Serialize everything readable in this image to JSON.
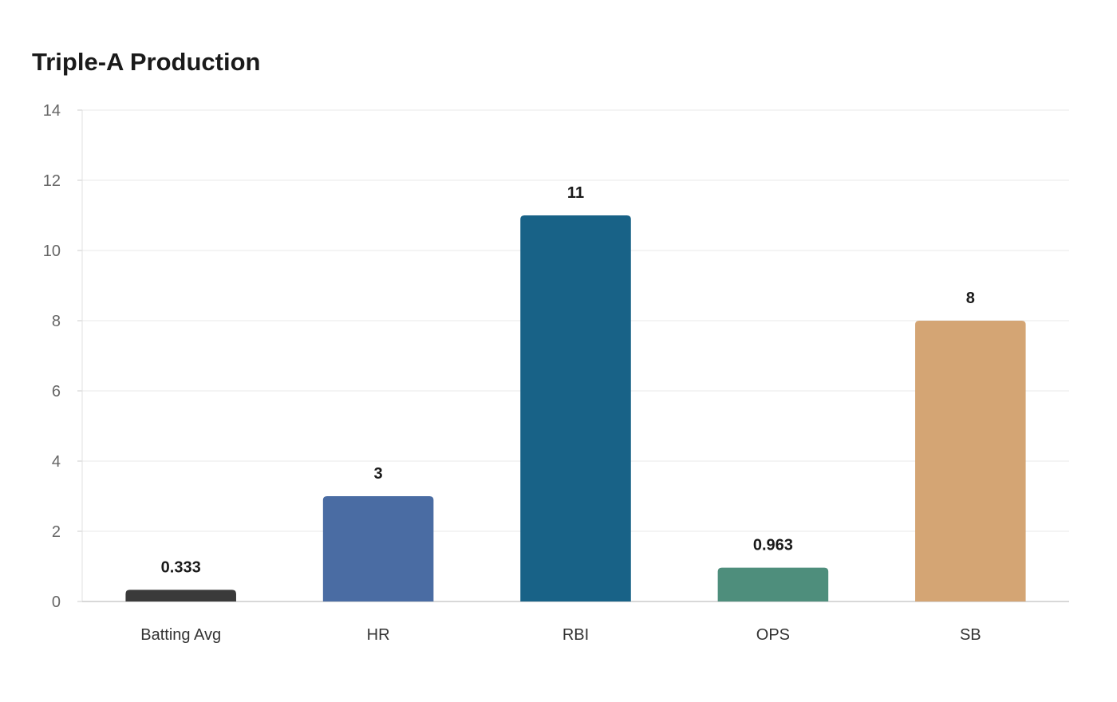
{
  "chart_data": {
    "type": "bar",
    "title": "Triple-A Production",
    "xlabel": "",
    "ylabel": "",
    "categories": [
      "Batting Avg",
      "HR",
      "RBI",
      "OPS",
      "SB"
    ],
    "values": [
      0.333,
      3,
      11,
      0.963,
      8
    ],
    "value_labels": [
      "0.333",
      "3",
      "11",
      "0.963",
      "8"
    ],
    "colors": [
      "#3a3a3a",
      "#4a6ca3",
      "#186287",
      "#4e8e7c",
      "#d4a574"
    ],
    "ylim": [
      0,
      14
    ],
    "yticks": [
      0,
      2,
      4,
      6,
      8,
      10,
      12,
      14
    ],
    "grid": true,
    "legend": "none"
  }
}
